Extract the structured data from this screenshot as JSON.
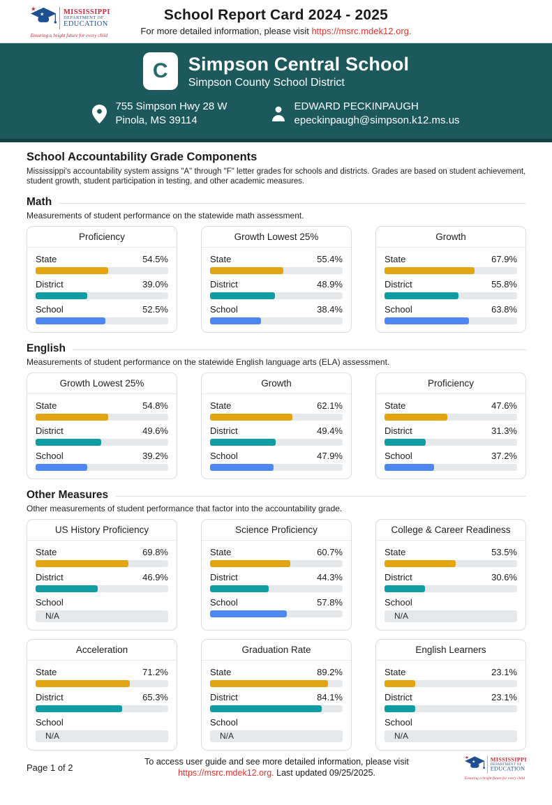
{
  "header": {
    "title": "School Report Card 2024 - 2025",
    "subtitle_prefix": "For more detailed information, please visit ",
    "subtitle_link": "https://msrc.mdek12.org."
  },
  "logo": {
    "line1": "MISSISSIPPI",
    "line2": "DEPARTMENT OF",
    "line3": "EDUCATION",
    "tagline": "Ensuring a bright future for every child"
  },
  "banner": {
    "grade": "C",
    "school_name": "Simpson Central School",
    "district_name": "Simpson County School District",
    "address_line1": "755 Simpson Hwy 28 W",
    "address_line2": "Pinola, MS 39114",
    "contact_name": "EDWARD PECKINPAUGH",
    "contact_email": "epeckinpaugh@simpson.k12.ms.us"
  },
  "accountability": {
    "heading": "School Accountability Grade Components",
    "description": "Mississippi's accountability system assigns \"A\" through \"F\" letter grades for schools and districts. Grades are based on student achievement, student growth, student participation in testing, and other academic measures."
  },
  "series_colors": {
    "State": "#e3a50f",
    "District": "#0f9ca2",
    "School": "#4c86f0"
  },
  "colors": {
    "banner_teal": "#1b595c",
    "link_red": "#e8322d",
    "bar_track": "#e6e9ec"
  },
  "sections": [
    {
      "heading": "Math",
      "description": "Measurements of student performance on the statewide math assessment.",
      "cards": [
        {
          "title": "Proficiency",
          "rows": [
            {
              "label": "State",
              "value": "54.5%"
            },
            {
              "label": "District",
              "value": "39.0%"
            },
            {
              "label": "School",
              "value": "52.5%"
            }
          ]
        },
        {
          "title": "Growth Lowest 25%",
          "rows": [
            {
              "label": "State",
              "value": "55.4%"
            },
            {
              "label": "District",
              "value": "48.9%"
            },
            {
              "label": "School",
              "value": "38.4%"
            }
          ]
        },
        {
          "title": "Growth",
          "rows": [
            {
              "label": "State",
              "value": "67.9%"
            },
            {
              "label": "District",
              "value": "55.8%"
            },
            {
              "label": "School",
              "value": "63.8%"
            }
          ]
        }
      ]
    },
    {
      "heading": "English",
      "description": "Measurements of student performance on the statewide English language arts (ELA) assessment.",
      "cards": [
        {
          "title": "Growth Lowest 25%",
          "rows": [
            {
              "label": "State",
              "value": "54.8%"
            },
            {
              "label": "District",
              "value": "49.6%"
            },
            {
              "label": "School",
              "value": "39.2%"
            }
          ]
        },
        {
          "title": "Growth",
          "rows": [
            {
              "label": "State",
              "value": "62.1%"
            },
            {
              "label": "District",
              "value": "49.4%"
            },
            {
              "label": "School",
              "value": "47.9%"
            }
          ]
        },
        {
          "title": "Proficiency",
          "rows": [
            {
              "label": "State",
              "value": "47.6%"
            },
            {
              "label": "District",
              "value": "31.3%"
            },
            {
              "label": "School",
              "value": "37.2%"
            }
          ]
        }
      ]
    },
    {
      "heading": "Other Measures",
      "description": "Other measurements of student performance that factor into the accountability grade.",
      "cards": [
        {
          "title": "US History Proficiency",
          "rows": [
            {
              "label": "State",
              "value": "69.8%"
            },
            {
              "label": "District",
              "value": "46.9%"
            },
            {
              "label": "School",
              "value": "N/A"
            }
          ]
        },
        {
          "title": "Science Proficiency",
          "rows": [
            {
              "label": "State",
              "value": "60.7%"
            },
            {
              "label": "District",
              "value": "44.3%"
            },
            {
              "label": "School",
              "value": "57.8%"
            }
          ]
        },
        {
          "title": "College & Career Readiness",
          "rows": [
            {
              "label": "State",
              "value": "53.5%"
            },
            {
              "label": "District",
              "value": "30.6%"
            },
            {
              "label": "School",
              "value": "N/A"
            }
          ]
        },
        {
          "title": "Acceleration",
          "rows": [
            {
              "label": "State",
              "value": "71.2%"
            },
            {
              "label": "District",
              "value": "65.3%"
            },
            {
              "label": "School",
              "value": "N/A"
            }
          ]
        },
        {
          "title": "Graduation Rate",
          "rows": [
            {
              "label": "State",
              "value": "89.2%"
            },
            {
              "label": "District",
              "value": "84.1%"
            },
            {
              "label": "School",
              "value": "N/A"
            }
          ]
        },
        {
          "title": "English Learners",
          "rows": [
            {
              "label": "State",
              "value": "23.1%"
            },
            {
              "label": "District",
              "value": "23.1%"
            },
            {
              "label": "School",
              "value": "N/A"
            }
          ]
        }
      ]
    }
  ],
  "footer": {
    "page_label": "Page 1 of 2",
    "line1": "To access user guide and see more detailed information, please visit",
    "link": "https://msrc.mdek12.org.",
    "line2_rest": " Last updated 09/25/2025."
  }
}
